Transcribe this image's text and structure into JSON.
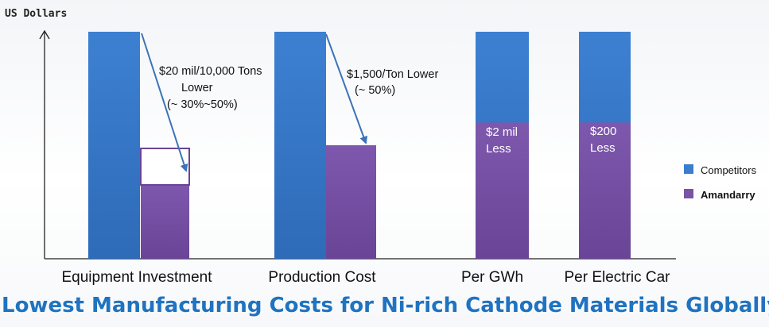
{
  "chart_data": {
    "type": "bar",
    "ylabel": "US Dollars",
    "categories": [
      "Equipment Investment",
      "Production Cost",
      "Per GWh",
      "Per Electric Car"
    ],
    "series": [
      {
        "name": "Competitors",
        "values": [
          100,
          100,
          100,
          100
        ],
        "color": "#3a7ccd"
      },
      {
        "name": "Amandarry",
        "values": [
          33,
          50,
          60,
          60
        ],
        "color": "#7a52a6"
      }
    ],
    "legend": {
      "position": "right",
      "entries": [
        "Competitors",
        "Amandarry"
      ]
    },
    "annotations": {
      "equipment": [
        "$20 mil/10,000 Tons",
        "Lower",
        "(~ 30%~50%)"
      ],
      "production": [
        "$1,500/Ton Lower",
        "(~ 50%)"
      ],
      "gwh": [
        "$2 mil",
        "Less"
      ],
      "car": [
        "$200",
        "Less"
      ]
    },
    "ylim": [
      0,
      100
    ],
    "grid": false
  },
  "title": "Lowest Manufacturing Costs for Ni-rich Cathode Materials Globally"
}
